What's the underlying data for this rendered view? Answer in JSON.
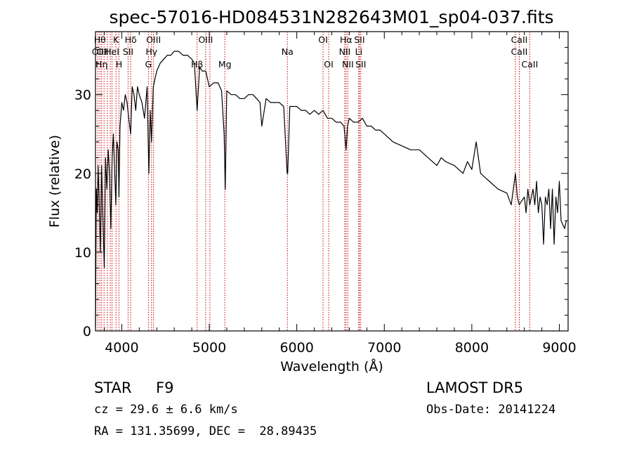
{
  "chart_data": {
    "type": "line",
    "title": "spec-57016-HD084531N282643M01_sp04-037.fits",
    "xlabel": "Wavelength (Å)",
    "ylabel": "Flux (relative)",
    "xlim": [
      3700,
      9100
    ],
    "ylim": [
      0,
      38
    ],
    "xticks": [
      4000,
      5000,
      6000,
      7000,
      8000,
      9000
    ],
    "yticks": [
      0,
      10,
      20,
      30
    ],
    "line_color": "#000000",
    "marker_color": "#cc0000",
    "series": [
      {
        "x": [
          3700,
          3710,
          3720,
          3730,
          3740,
          3755,
          3770,
          3785,
          3800,
          3815,
          3830,
          3845,
          3860,
          3875,
          3890,
          3905,
          3920,
          3933,
          3945,
          3960,
          3968,
          3980,
          4000,
          4020,
          4040,
          4060,
          4080,
          4101,
          4120,
          4140,
          4160,
          4180,
          4200,
          4230,
          4260,
          4290,
          4310,
          4325,
          4340,
          4360,
          4380,
          4400,
          4440,
          4480,
          4520,
          4560,
          4600,
          4650,
          4700,
          4750,
          4800,
          4830,
          4861,
          4890,
          4920,
          4960,
          5000,
          5050,
          5100,
          5140,
          5170,
          5183,
          5200,
          5250,
          5300,
          5350,
          5400,
          5450,
          5500,
          5540,
          5580,
          5600,
          5650,
          5700,
          5750,
          5800,
          5850,
          5890,
          5896,
          5920,
          5950,
          6000,
          6050,
          6100,
          6150,
          6200,
          6250,
          6300,
          6350,
          6400,
          6450,
          6500,
          6540,
          6563,
          6580,
          6600,
          6650,
          6700,
          6750,
          6800,
          6850,
          6900,
          6950,
          7000,
          7100,
          7200,
          7300,
          7400,
          7500,
          7600,
          7650,
          7700,
          7800,
          7900,
          7950,
          8000,
          8050,
          8100,
          8150,
          8200,
          8300,
          8400,
          8450,
          8498,
          8520,
          8542,
          8570,
          8600,
          8620,
          8640,
          8662,
          8680,
          8700,
          8720,
          8740,
          8760,
          8780,
          8800,
          8820,
          8840,
          8860,
          8880,
          8900,
          8920,
          8940,
          8960,
          8980,
          9000,
          9020,
          9040,
          9060,
          9080
        ],
        "y": [
          0.5,
          18,
          15,
          21,
          17,
          10,
          21,
          14,
          8,
          22,
          18,
          23,
          20,
          13,
          22,
          25,
          20,
          16,
          24,
          23,
          17,
          26,
          29,
          28,
          30,
          29,
          27,
          25,
          31,
          30,
          28,
          31,
          30,
          29,
          27,
          31,
          20,
          28,
          24,
          31,
          32,
          33,
          34,
          34.5,
          35,
          35,
          35.5,
          35.5,
          35,
          35,
          34.5,
          34,
          28,
          33.5,
          33,
          33,
          31,
          31.5,
          31.5,
          30.5,
          25,
          18,
          30.5,
          30,
          30,
          29.5,
          29.5,
          30,
          30,
          29.5,
          29,
          26,
          29.5,
          29,
          29,
          29,
          28.5,
          20,
          20,
          28.5,
          28.5,
          28.5,
          28,
          28,
          27.5,
          28,
          27.5,
          28,
          27,
          27,
          26.5,
          26.5,
          26,
          23,
          26,
          27,
          26.5,
          26.5,
          27,
          26,
          26,
          25.5,
          25.5,
          25,
          24,
          23.5,
          23,
          23,
          22,
          21,
          22,
          21.5,
          21,
          20,
          21.5,
          20.5,
          24,
          20,
          19.5,
          19,
          18,
          17.5,
          16,
          20,
          17,
          16,
          16.5,
          17,
          15,
          18,
          16,
          17,
          18,
          16,
          19,
          15,
          17,
          16,
          11,
          17,
          16,
          18,
          13,
          18,
          11,
          17,
          15,
          19,
          14,
          13.5,
          13,
          14
        ]
      }
    ],
    "line_markers": [
      {
        "x": 3727,
        "label": "OII",
        "row": 2
      },
      {
        "x": 3750,
        "label": "Hθ",
        "row": 1
      },
      {
        "x": 3770,
        "label": "Hη",
        "row": 3
      },
      {
        "x": 3798,
        "label": "OIII",
        "row": 2
      },
      {
        "x": 3835,
        "label": "",
        "row": 0
      },
      {
        "x": 3869,
        "label": "",
        "row": 0
      },
      {
        "x": 3889,
        "label": "HeI",
        "row": 2
      },
      {
        "x": 3934,
        "label": "K",
        "row": 1
      },
      {
        "x": 3968,
        "label": "H",
        "row": 3
      },
      {
        "x": 4072,
        "label": "SII",
        "row": 2
      },
      {
        "x": 4102,
        "label": "Hδ",
        "row": 1
      },
      {
        "x": 4305,
        "label": "G",
        "row": 3
      },
      {
        "x": 4340,
        "label": "Hγ",
        "row": 2
      },
      {
        "x": 4363,
        "label": "OIII",
        "row": 1
      },
      {
        "x": 4861,
        "label": "Hβ",
        "row": 3
      },
      {
        "x": 4959,
        "label": "OIII",
        "row": 1
      },
      {
        "x": 5007,
        "label": "",
        "row": 0
      },
      {
        "x": 5178,
        "label": "Mg",
        "row": 3
      },
      {
        "x": 5893,
        "label": "Na",
        "row": 2
      },
      {
        "x": 6300,
        "label": "OI",
        "row": 1
      },
      {
        "x": 6364,
        "label": "OI",
        "row": 3
      },
      {
        "x": 6548,
        "label": "NII",
        "row": 2
      },
      {
        "x": 6563,
        "label": "Hα",
        "row": 1
      },
      {
        "x": 6583,
        "label": "NII",
        "row": 3
      },
      {
        "x": 6708,
        "label": "Li",
        "row": 2
      },
      {
        "x": 6716,
        "label": "SII",
        "row": 1
      },
      {
        "x": 6731,
        "label": "SII",
        "row": 3
      },
      {
        "x": 8498,
        "label": "",
        "row": 0
      },
      {
        "x": 8542,
        "label": "CaII",
        "row": 1
      },
      {
        "x": 8542,
        "label": "CaII",
        "row": 2
      },
      {
        "x": 8662,
        "label": "CaII",
        "row": 3
      }
    ]
  },
  "info": {
    "object_class": "STAR",
    "subclass": "F9",
    "survey": "LAMOST DR5",
    "redshift": "cz = 29.6 ± 6.6 km/s",
    "obs_date": "Obs-Date: 20141224",
    "coords": "RA = 131.35699, DEC =  28.89435"
  }
}
